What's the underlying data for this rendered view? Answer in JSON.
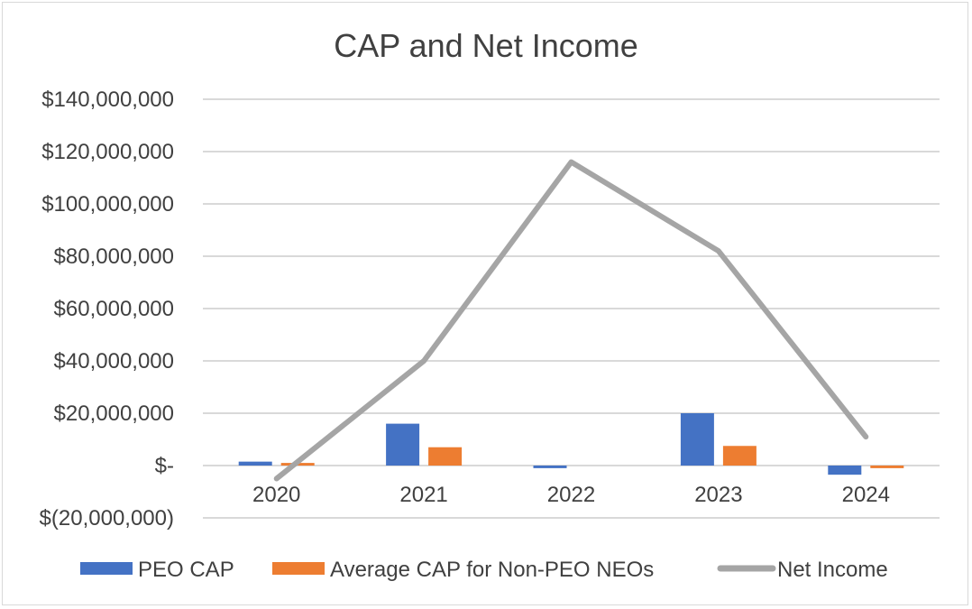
{
  "chart_data": {
    "type": "bar+line",
    "title": "CAP and Net Income",
    "categories": [
      "2020",
      "2021",
      "2022",
      "2023",
      "2024"
    ],
    "ylim": [
      -20000000,
      140000000
    ],
    "ytick_values": [
      140000000,
      120000000,
      100000000,
      80000000,
      60000000,
      40000000,
      20000000,
      0,
      -20000000
    ],
    "ytick_labels": [
      "$140,000,000",
      "$120,000,000",
      "$100,000,000",
      "$80,000,000",
      "$60,000,000",
      "$40,000,000",
      "$20,000,000",
      "$-",
      "$(20,000,000)"
    ],
    "grid": true,
    "legend_position": "bottom",
    "series": [
      {
        "name": "PEO CAP",
        "kind": "bar",
        "color": "#4472c4",
        "values": [
          1500000,
          16000000,
          -1000000,
          20000000,
          -3500000
        ]
      },
      {
        "name": "Average CAP for Non-PEO NEOs",
        "kind": "bar",
        "color": "#ed7d31",
        "values": [
          1000000,
          7000000,
          0,
          7500000,
          -1000000
        ]
      },
      {
        "name": "Net Income",
        "kind": "line",
        "color": "#a5a5a5",
        "values": [
          -5000000,
          40000000,
          116000000,
          82000000,
          11000000
        ]
      }
    ]
  }
}
